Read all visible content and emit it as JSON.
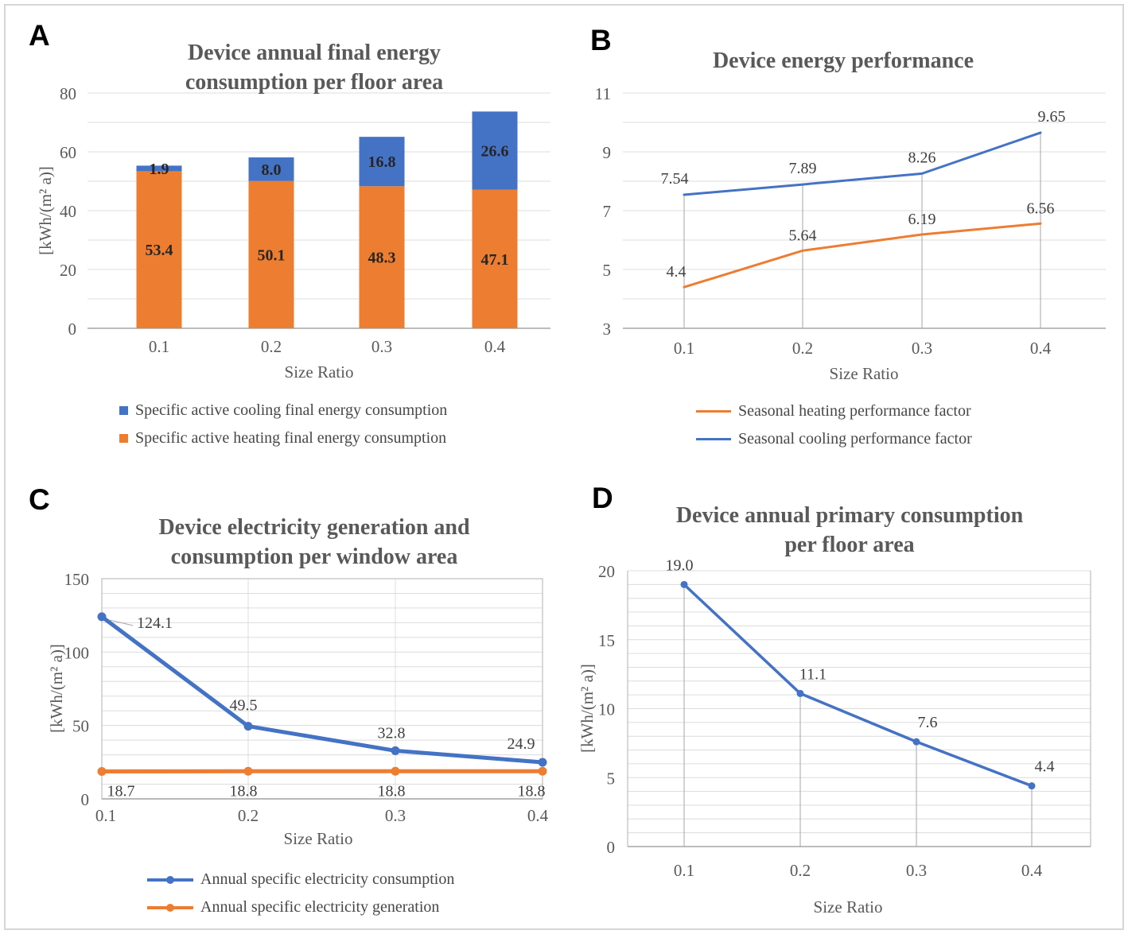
{
  "panels": [
    {
      "letter": "A",
      "legend": [
        {
          "label": "Specific active cooling final energy consumption",
          "marker": "square",
          "color": "#4472C4"
        },
        {
          "label": "Specific active heating final energy consumption",
          "marker": "square",
          "color": "#ED7D31"
        }
      ]
    },
    {
      "letter": "B",
      "legend": [
        {
          "label": "Seasonal heating performance factor",
          "marker": "line",
          "color": "#ED7D31"
        },
        {
          "label": "Seasonal cooling performance factor",
          "marker": "line",
          "color": "#4472C4"
        }
      ]
    },
    {
      "letter": "C",
      "legend": [
        {
          "label": "Annual specific electricity consumption",
          "marker": "linedot",
          "color": "#4472C4"
        },
        {
          "label": "Annual specific electricity generation",
          "marker": "linedot",
          "color": "#ED7D31"
        }
      ]
    },
    {
      "letter": "D",
      "legend": []
    }
  ],
  "chart_data": [
    {
      "id": "A",
      "type": "bar",
      "stacked": true,
      "title": "Device annual final energy consumption per floor area",
      "xlabel": "Size Ratio",
      "ylabel": "[kWh/(m² a)]",
      "categories": [
        "0.1",
        "0.2",
        "0.3",
        "0.4"
      ],
      "series": [
        {
          "name": "Specific active heating final energy consumption",
          "color": "#ED7D31",
          "values": [
            53.4,
            50.1,
            48.3,
            47.1
          ],
          "labels": [
            "53.4",
            "50.1",
            "48.3",
            "47.1"
          ]
        },
        {
          "name": "Specific active cooling final energy consumption",
          "color": "#4472C4",
          "values": [
            1.9,
            8.0,
            16.8,
            26.6
          ],
          "labels": [
            "1.9",
            "8.0",
            "16.8",
            "26.6"
          ]
        }
      ],
      "ylim": [
        0,
        80
      ],
      "yticks": [
        0,
        20,
        40,
        60,
        80
      ],
      "grid_step": 10,
      "grid": true,
      "legend_position": "bottom-left"
    },
    {
      "id": "B",
      "type": "line",
      "title": "Device energy performance",
      "xlabel": "Size Ratio",
      "ylabel": "",
      "categories": [
        "0.1",
        "0.2",
        "0.3",
        "0.4"
      ],
      "series": [
        {
          "name": "Seasonal heating performance factor",
          "color": "#ED7D31",
          "values": [
            4.4,
            5.64,
            6.19,
            6.56
          ],
          "labels": [
            "4.4",
            "5.64",
            "6.19",
            "6.56"
          ]
        },
        {
          "name": "Seasonal cooling performance factor",
          "color": "#4472C4",
          "values": [
            7.54,
            7.89,
            8.26,
            9.65
          ],
          "labels": [
            "7.54",
            "7.89",
            "8.26",
            "9.65"
          ]
        }
      ],
      "ylim": [
        3,
        11
      ],
      "yticks": [
        3,
        5,
        7,
        9,
        11
      ],
      "grid_step": 1,
      "grid": true,
      "drop_lines": true,
      "legend_position": "bottom-center"
    },
    {
      "id": "C",
      "type": "line",
      "title": "Device electricity generation and consumption per window area",
      "xlabel": "Size Ratio",
      "ylabel": "[kWh/(m² a)]",
      "categories": [
        "0.1",
        "0.2",
        "0.3",
        "0.4"
      ],
      "series": [
        {
          "name": "Annual specific electricity consumption",
          "color": "#4472C4",
          "values": [
            124.1,
            49.5,
            32.8,
            24.9
          ],
          "labels": [
            "124.1",
            "49.5",
            "32.8",
            "24.9"
          ]
        },
        {
          "name": "Annual specific electricity generation",
          "color": "#ED7D31",
          "values": [
            18.7,
            18.8,
            18.8,
            18.8
          ],
          "labels": [
            "18.7",
            "18.8",
            "18.8",
            "18.8"
          ]
        }
      ],
      "ylim": [
        0,
        150
      ],
      "yticks": [
        0,
        50,
        100,
        150
      ],
      "grid_step": 10,
      "grid": true,
      "plot_border": true,
      "legend_position": "bottom-left"
    },
    {
      "id": "D",
      "type": "line",
      "title": "Device annual primary consumption per floor area",
      "xlabel": "Size Ratio",
      "ylabel": "[kWh/(m² a)]",
      "categories": [
        "0.1",
        "0.2",
        "0.3",
        "0.4"
      ],
      "series": [
        {
          "color": "#4472C4",
          "values": [
            19.0,
            11.1,
            7.6,
            4.4
          ],
          "labels": [
            "19.0",
            "11.1",
            "7.6",
            "4.4"
          ]
        }
      ],
      "ylim": [
        0,
        20
      ],
      "yticks": [
        0,
        5,
        10,
        15,
        20
      ],
      "grid_step": 1,
      "grid": true,
      "drop_lines": true,
      "legend_position": "none"
    }
  ]
}
